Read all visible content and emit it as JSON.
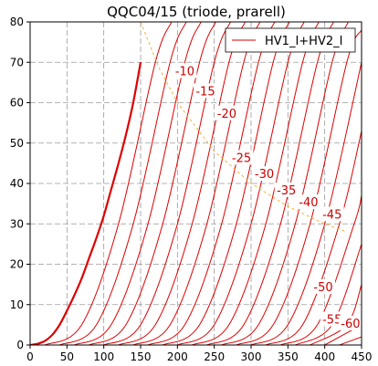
{
  "chart_data": {
    "type": "line",
    "title": "QQC04/15 (triode, prarell)",
    "xlabel": "",
    "ylabel": "",
    "xlim": [
      0,
      450
    ],
    "ylim": [
      0,
      80
    ],
    "xticks": [
      "0",
      "50",
      "100",
      "150",
      "200",
      "250",
      "300",
      "350",
      "400",
      "450"
    ],
    "yticks": [
      "0",
      "10",
      "20",
      "30",
      "40",
      "50",
      "60",
      "70",
      "80"
    ],
    "grid": true,
    "legend": {
      "placement": "top-right",
      "entries": [
        "HV1_I+HV2_I"
      ]
    },
    "series": [
      {
        "label": "",
        "bold": true,
        "x0": 0,
        "x": [
          0,
          10,
          20,
          30,
          40,
          50,
          60,
          70,
          80,
          90,
          100,
          110,
          120,
          130,
          140,
          150
        ],
        "y": [
          0,
          0.3,
          1,
          2.5,
          5,
          8.5,
          12.3,
          16.5,
          21.5,
          26.5,
          32,
          38.5,
          45,
          52,
          60,
          70
        ]
      },
      {
        "label": "",
        "x0": 20,
        "x": [
          20,
          70,
          120,
          170,
          192
        ],
        "y": [
          0,
          5,
          30,
          70,
          80
        ]
      },
      {
        "label": "-10",
        "x0": 40,
        "x": [
          40,
          90,
          140,
          190,
          212
        ],
        "y": [
          0,
          5,
          30,
          70,
          80
        ]
      },
      {
        "label": "-15",
        "x0": 60,
        "x": [
          60,
          110,
          160,
          210,
          232
        ],
        "y": [
          0,
          5,
          30,
          70,
          80
        ]
      },
      {
        "label": "-20",
        "x0": 80,
        "x": [
          80,
          130,
          180,
          230,
          252
        ],
        "y": [
          0,
          5,
          30,
          70,
          80
        ]
      },
      {
        "label": "",
        "x0": 100,
        "x": [
          100,
          150,
          200,
          250,
          272
        ],
        "y": [
          0,
          5,
          30,
          70,
          80
        ]
      },
      {
        "label": "-25",
        "x0": 120,
        "x": [
          120,
          170,
          220,
          270,
          292
        ],
        "y": [
          0,
          5,
          30,
          70,
          80
        ]
      },
      {
        "label": "-30",
        "x0": 140,
        "x": [
          140,
          190,
          240,
          290,
          312
        ],
        "y": [
          0,
          5,
          30,
          70,
          80
        ]
      },
      {
        "label": "",
        "x0": 160,
        "x": [
          160,
          210,
          260,
          310,
          332
        ],
        "y": [
          0,
          5,
          30,
          70,
          80
        ]
      },
      {
        "label": "-35",
        "x0": 180,
        "x": [
          180,
          230,
          280,
          330,
          352
        ],
        "y": [
          0,
          5,
          30,
          70,
          80
        ]
      },
      {
        "label": "",
        "x0": 200,
        "x": [
          200,
          250,
          300,
          350,
          372
        ],
        "y": [
          0,
          5,
          30,
          70,
          80
        ]
      },
      {
        "label": "-40",
        "x0": 220,
        "x": [
          220,
          270,
          320,
          370,
          392
        ],
        "y": [
          0,
          5,
          30,
          70,
          80
        ]
      },
      {
        "label": "",
        "x0": 240,
        "x": [
          240,
          290,
          340,
          390,
          412
        ],
        "y": [
          0,
          5,
          30,
          70,
          80
        ]
      },
      {
        "label": "-45",
        "x0": 260,
        "x": [
          260,
          310,
          360,
          410,
          432
        ],
        "y": [
          0,
          5,
          30,
          70,
          80
        ]
      },
      {
        "label": "",
        "x0": 280,
        "x": [
          280,
          330,
          380,
          430,
          450
        ],
        "y": [
          0,
          5,
          30,
          70,
          78
        ]
      },
      {
        "label": "",
        "x0": 300,
        "x": [
          300,
          350,
          400,
          450
        ],
        "y": [
          0,
          5,
          30,
          70
        ]
      },
      {
        "label": "-50",
        "x0": 320,
        "x": [
          320,
          370,
          420,
          450
        ],
        "y": [
          0,
          5,
          30,
          53
        ]
      },
      {
        "label": "",
        "x0": 340,
        "x": [
          340,
          390,
          440,
          450
        ],
        "y": [
          0,
          5,
          30,
          37
        ]
      },
      {
        "label": "-55",
        "x0": 360,
        "x": [
          360,
          410,
          450
        ],
        "y": [
          0,
          5,
          25
        ]
      },
      {
        "label": "-60",
        "x0": 380,
        "x": [
          380,
          430,
          450
        ],
        "y": [
          0,
          5,
          15
        ]
      },
      {
        "label": "",
        "x0": 400,
        "x": [
          400,
          450
        ],
        "y": [
          0,
          5
        ]
      },
      {
        "label": "",
        "x0": 420,
        "x": [
          420,
          450
        ],
        "y": [
          0,
          2
        ]
      }
    ],
    "dissipation_curve": {
      "x": [
        150,
        175,
        200,
        250,
        300,
        350,
        400,
        430
      ],
      "y": [
        80,
        68.6,
        60,
        48,
        40,
        34.3,
        30,
        28
      ]
    },
    "curve_labels": [
      {
        "text": "-10",
        "x": 210,
        "y": 67.5
      },
      {
        "text": "-15",
        "x": 238,
        "y": 62.5
      },
      {
        "text": "-20",
        "x": 267,
        "y": 57
      },
      {
        "text": "-25",
        "x": 287,
        "y": 46
      },
      {
        "text": "-30",
        "x": 318,
        "y": 42
      },
      {
        "text": "-35",
        "x": 348,
        "y": 38
      },
      {
        "text": "-40",
        "x": 378,
        "y": 35
      },
      {
        "text": "-45",
        "x": 410,
        "y": 32
      },
      {
        "text": "-50",
        "x": 398,
        "y": 14
      },
      {
        "text": "-55",
        "x": 410,
        "y": 6
      },
      {
        "text": "-60",
        "x": 435,
        "y": 5
      }
    ]
  }
}
